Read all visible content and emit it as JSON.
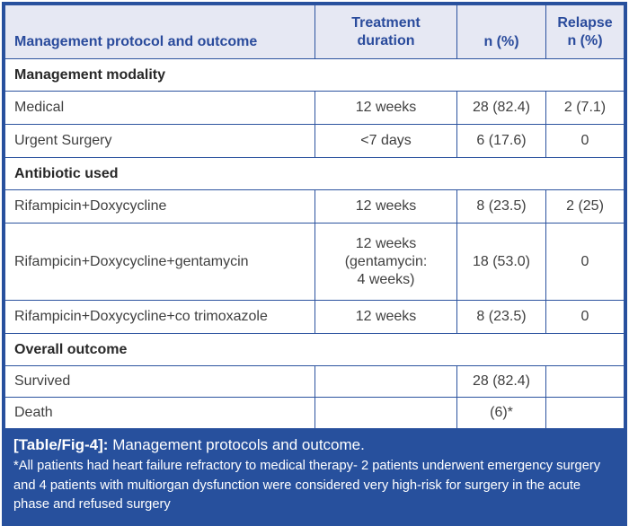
{
  "table": {
    "header": {
      "col1": "Management protocol and outcome",
      "col2": "Treatment\nduration",
      "col3": "n (%)",
      "col4": "Relapse\nn (%)"
    },
    "rows": [
      {
        "type": "section",
        "label": "Management modality"
      },
      {
        "type": "data",
        "name": "Medical",
        "duration": "12 weeks",
        "n": "28 (82.4)",
        "relapse": "2 (7.1)"
      },
      {
        "type": "data",
        "name": "Urgent Surgery",
        "duration": "<7 days",
        "n": "6 (17.6)",
        "relapse": "0"
      },
      {
        "type": "section",
        "label": "Antibiotic used"
      },
      {
        "type": "data",
        "name": "Rifampicin+Doxycycline",
        "duration": "12 weeks",
        "n": "8 (23.5)",
        "relapse": "2 (25)"
      },
      {
        "type": "data",
        "name": "Rifampicin+Doxycycline+gentamycin",
        "duration": "12 weeks\n(gentamycin:\n4 weeks)",
        "n": "18 (53.0)",
        "relapse": "0"
      },
      {
        "type": "data",
        "name": "Rifampicin+Doxycycline+co trimoxazole",
        "duration": "12 weeks",
        "n": "8 (23.5)",
        "relapse": "0"
      },
      {
        "type": "section",
        "label": "Overall outcome"
      },
      {
        "type": "data",
        "name": "Survived",
        "duration": "",
        "n": "28 (82.4)",
        "relapse": ""
      },
      {
        "type": "data",
        "name": "Death",
        "duration": "",
        "n": "(6)*",
        "relapse": ""
      }
    ]
  },
  "caption": {
    "label": "[Table/Fig-4]:",
    "text": "Management protocols and outcome."
  },
  "footnote": "*All patients had heart failure refractory to medical therapy- 2 patients underwent emergency surgery and 4 patients with multiorgan dysfunction were considered very high-risk for surgery in the acute phase and refused surgery",
  "colors": {
    "accent_blue": "#27509d",
    "grid_blue": "#2c539f",
    "header_bg": "#e6e8f3",
    "header_text": "#2a4b9c",
    "body_text": "#3f3f3f",
    "caption_bg": "#27509d",
    "caption_text": "#ffffff"
  }
}
